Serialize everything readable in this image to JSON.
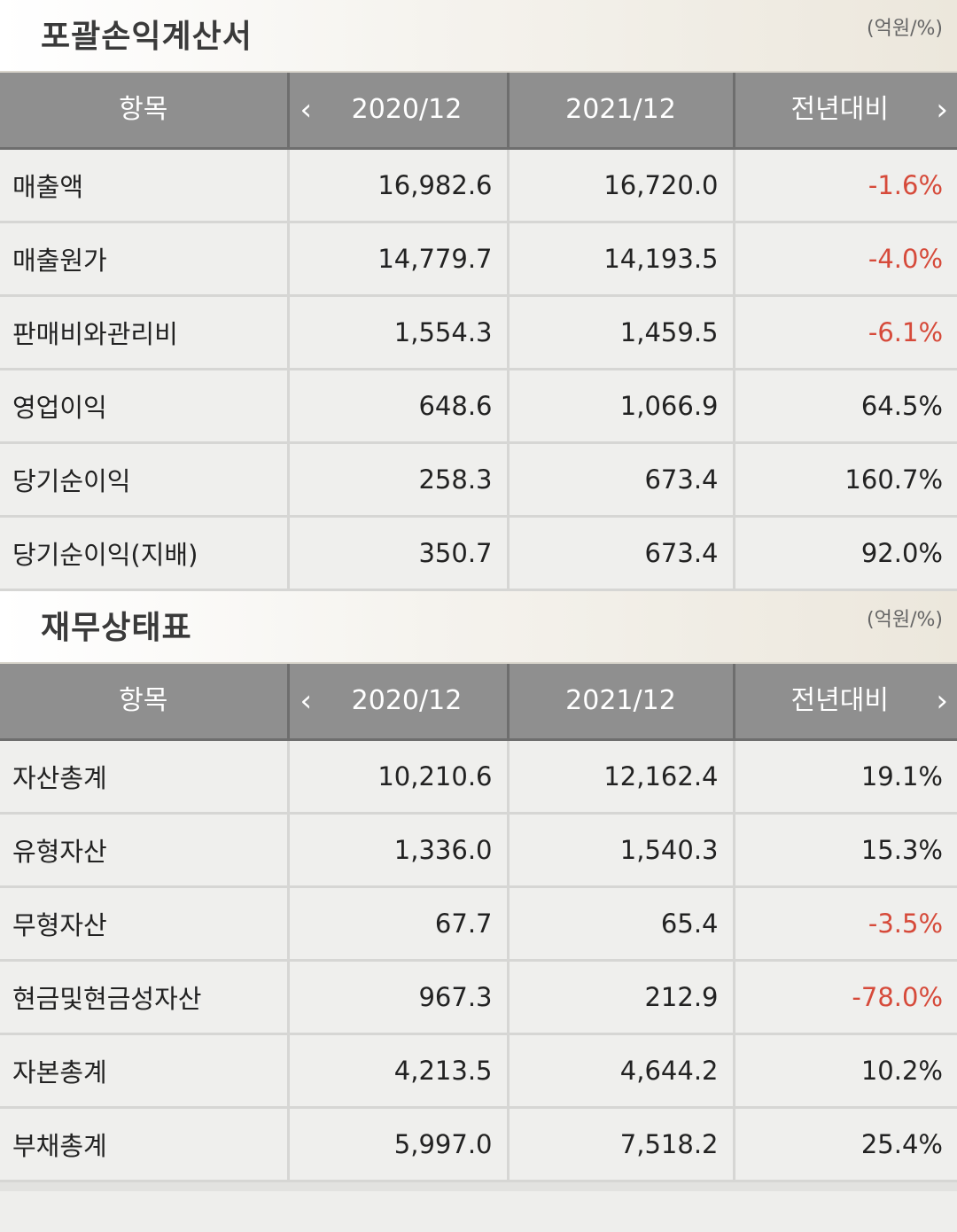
{
  "sections": [
    {
      "title": "포괄손익계산서",
      "unit": "(억원/%)",
      "headers": {
        "item": "항목",
        "prev": "2020/12",
        "curr": "2021/12",
        "yoy": "전년대비"
      },
      "rows": [
        {
          "label": "매출액",
          "prev": "16,982.6",
          "curr": "16,720.0",
          "yoy": "-1.6%",
          "negative": true
        },
        {
          "label": "매출원가",
          "prev": "14,779.7",
          "curr": "14,193.5",
          "yoy": "-4.0%",
          "negative": true
        },
        {
          "label": "판매비와관리비",
          "prev": "1,554.3",
          "curr": "1,459.5",
          "yoy": "-6.1%",
          "negative": true
        },
        {
          "label": "영업이익",
          "prev": "648.6",
          "curr": "1,066.9",
          "yoy": "64.5%",
          "negative": false
        },
        {
          "label": "당기순이익",
          "prev": "258.3",
          "curr": "673.4",
          "yoy": "160.7%",
          "negative": false
        },
        {
          "label": "당기순이익(지배)",
          "prev": "350.7",
          "curr": "673.4",
          "yoy": "92.0%",
          "negative": false
        }
      ]
    },
    {
      "title": "재무상태표",
      "unit": "(억원/%)",
      "headers": {
        "item": "항목",
        "prev": "2020/12",
        "curr": "2021/12",
        "yoy": "전년대비"
      },
      "rows": [
        {
          "label": "자산총계",
          "prev": "10,210.6",
          "curr": "12,162.4",
          "yoy": "19.1%",
          "negative": false
        },
        {
          "label": "유형자산",
          "prev": "1,336.0",
          "curr": "1,540.3",
          "yoy": "15.3%",
          "negative": false
        },
        {
          "label": "무형자산",
          "prev": "67.7",
          "curr": "65.4",
          "yoy": "-3.5%",
          "negative": true
        },
        {
          "label": "현금및현금성자산",
          "prev": "967.3",
          "curr": "212.9",
          "yoy": "-78.0%",
          "negative": true
        },
        {
          "label": "자본총계",
          "prev": "4,213.5",
          "curr": "4,644.2",
          "yoy": "10.2%",
          "negative": false
        },
        {
          "label": "부채총계",
          "prev": "5,997.0",
          "curr": "7,518.2",
          "yoy": "25.4%",
          "negative": false
        }
      ]
    }
  ],
  "colors": {
    "negative": "#d64a3a",
    "header_bg": "#8f8f8f"
  },
  "icons": {
    "prev": "chevron-left-icon",
    "next": "chevron-right-icon"
  }
}
